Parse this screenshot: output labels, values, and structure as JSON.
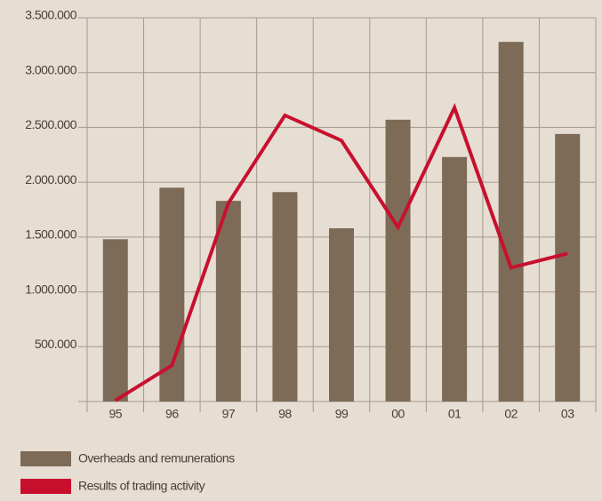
{
  "chart_data": {
    "type": "bar",
    "categories": [
      "95",
      "96",
      "97",
      "98",
      "99",
      "00",
      "01",
      "02",
      "03"
    ],
    "series": [
      {
        "name": "Overheads and remunerations",
        "color": "#7d6b57",
        "type": "bar",
        "values": [
          1480000,
          1950000,
          1830000,
          1910000,
          1580000,
          2570000,
          2230000,
          3280000,
          2440000
        ]
      },
      {
        "name": "Results of trading activity",
        "color": "#c8102e",
        "type": "line",
        "values": [
          10000,
          330000,
          1810000,
          2610000,
          2380000,
          1590000,
          2680000,
          1220000,
          1350000
        ]
      }
    ],
    "ylim": [
      0,
      3500000
    ],
    "yticks": [
      {
        "value": 500000,
        "label": "500.000"
      },
      {
        "value": 1000000,
        "label": "1.000.000"
      },
      {
        "value": 1500000,
        "label": "1.500.000"
      },
      {
        "value": 2000000,
        "label": "2.000.000"
      },
      {
        "value": 2500000,
        "label": "2.500.000"
      },
      {
        "value": 3000000,
        "label": "3.000.000"
      },
      {
        "value": 3500000,
        "label": "3.500.000"
      }
    ],
    "grid": true
  }
}
